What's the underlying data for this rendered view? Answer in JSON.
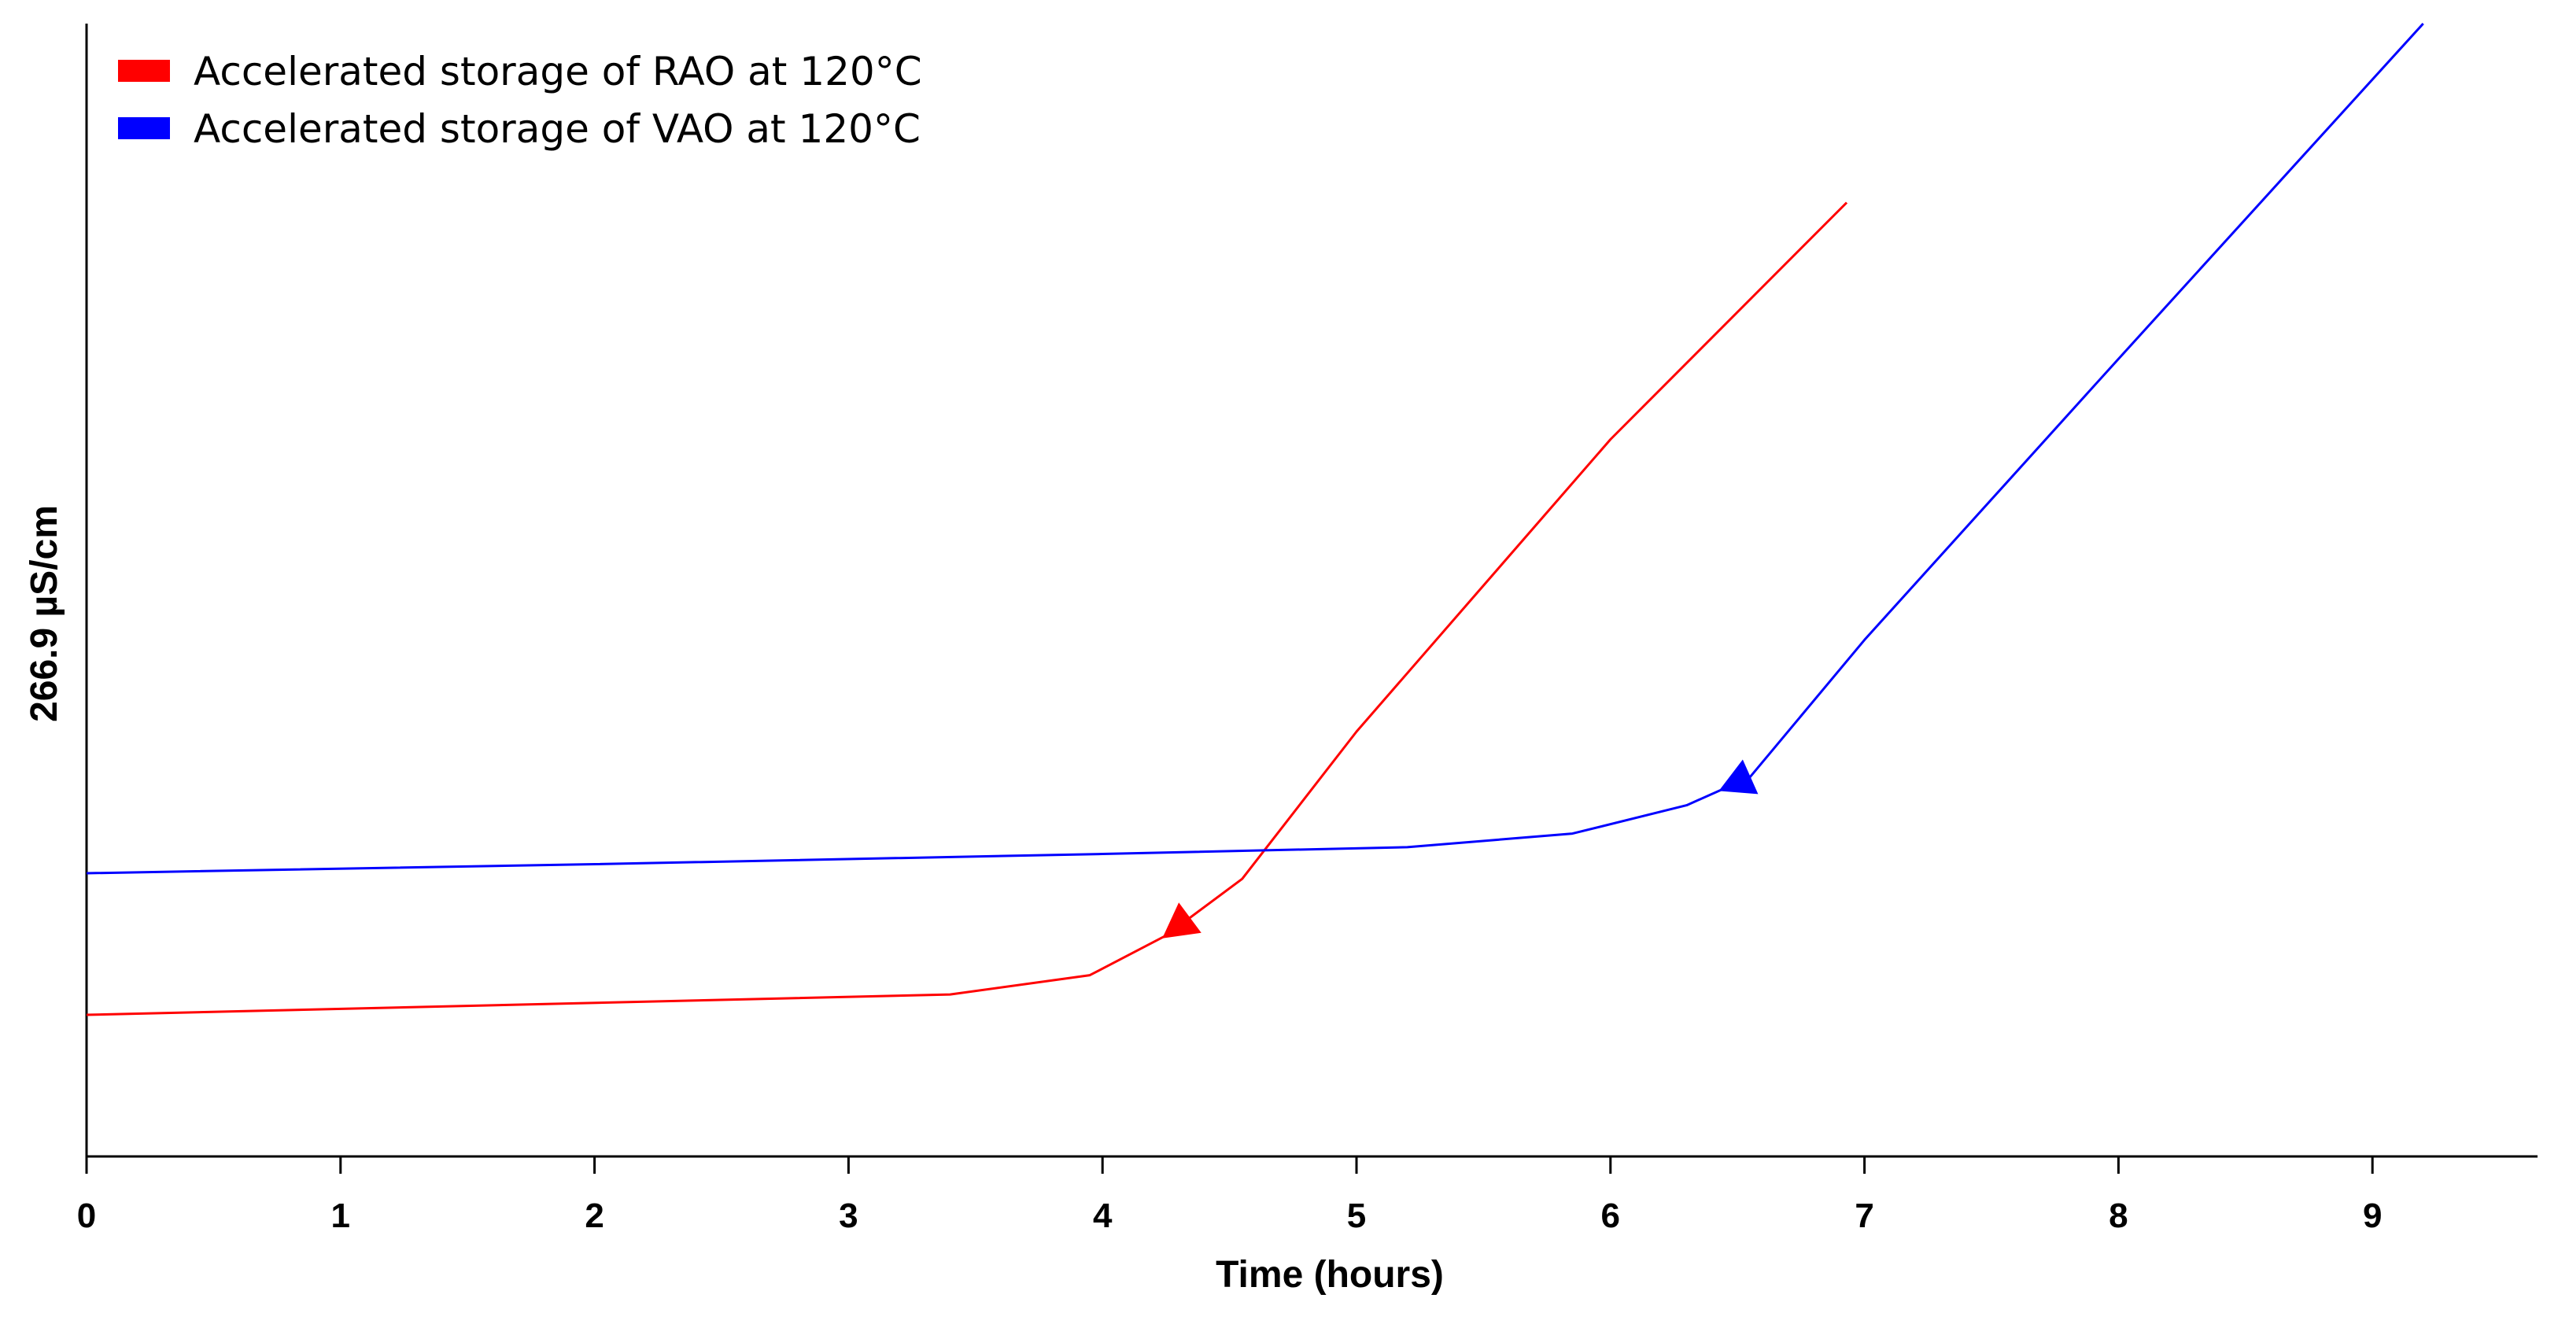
{
  "chart_data": {
    "type": "line",
    "title": "",
    "xlabel": "Time (hours)",
    "ylabel": "266.9 µS/cm",
    "xlim": [
      0,
      9.65
    ],
    "ylim": [
      0,
      100
    ],
    "x_ticks": [
      0,
      1,
      2,
      3,
      4,
      5,
      6,
      7,
      8,
      9
    ],
    "x_tick_labels": [
      "0",
      "1",
      "2",
      "3",
      "4",
      "5",
      "6",
      "7",
      "8",
      "9"
    ],
    "grid": false,
    "legend_position": "top-left",
    "series": [
      {
        "name": "Accelerated storage of RAO at 120°C",
        "color": "#ff0000",
        "x": [
          0,
          3.4,
          3.95,
          4.25,
          4.55,
          5.0,
          6.0,
          6.93
        ],
        "y": [
          12.5,
          14.3,
          16.0,
          19.5,
          24.5,
          37.5,
          63.3,
          84.2
        ],
        "marker_at": 4.3
      },
      {
        "name": "Accelerated storage of VAO at 120°C",
        "color": "#0000ff",
        "x": [
          0,
          2.0,
          4.0,
          5.2,
          5.85,
          6.3,
          6.55,
          7.0,
          8.0,
          9.2
        ],
        "y": [
          25.0,
          25.8,
          26.7,
          27.3,
          28.5,
          31.0,
          33.5,
          45.6,
          70.4,
          100.0
        ],
        "marker_at": 6.5
      }
    ]
  }
}
